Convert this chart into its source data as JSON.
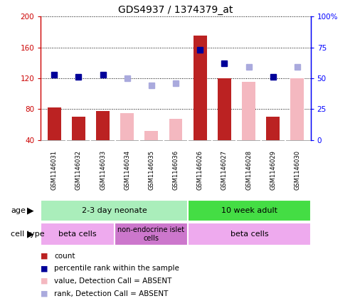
{
  "title": "GDS4937 / 1374379_at",
  "samples": [
    "GSM1146031",
    "GSM1146032",
    "GSM1146033",
    "GSM1146034",
    "GSM1146035",
    "GSM1146036",
    "GSM1146026",
    "GSM1146027",
    "GSM1146028",
    "GSM1146029",
    "GSM1146030"
  ],
  "bar_values": [
    82,
    70,
    78,
    75,
    52,
    67,
    175,
    120,
    115,
    70,
    120
  ],
  "bar_absent": [
    false,
    false,
    false,
    true,
    true,
    true,
    false,
    false,
    true,
    false,
    true
  ],
  "rank_values": [
    53,
    51,
    53,
    50,
    44,
    46,
    73,
    62,
    59,
    51,
    59
  ],
  "rank_absent": [
    false,
    false,
    false,
    true,
    true,
    true,
    false,
    false,
    true,
    false,
    true
  ],
  "ylim_left": [
    40,
    200
  ],
  "ylim_right": [
    0,
    100
  ],
  "yticks_left": [
    40,
    80,
    120,
    160,
    200
  ],
  "yticks_right": [
    0,
    25,
    50,
    75,
    100
  ],
  "ytick_labels_left": [
    "40",
    "80",
    "120",
    "160",
    "200"
  ],
  "ytick_labels_right": [
    "0",
    "25",
    "50",
    "75",
    "100%"
  ],
  "color_bar_present": "#bb2222",
  "color_bar_absent": "#f4b8c0",
  "color_rank_present": "#000099",
  "color_rank_absent": "#aaaadd",
  "age_groups": [
    {
      "label": "2-3 day neonate",
      "count": 6,
      "color": "#aaeebb"
    },
    {
      "label": "10 week adult",
      "count": 5,
      "color": "#44dd44"
    }
  ],
  "cell_type_groups": [
    {
      "label": "beta cells",
      "count": 3,
      "color": "#eeaaee"
    },
    {
      "label": "non-endocrine islet\ncells",
      "count": 3,
      "color": "#cc77cc"
    },
    {
      "label": "beta cells",
      "count": 5,
      "color": "#eeaaee"
    }
  ],
  "legend_items": [
    {
      "label": "count",
      "color": "#bb2222"
    },
    {
      "label": "percentile rank within the sample",
      "color": "#000099"
    },
    {
      "label": "value, Detection Call = ABSENT",
      "color": "#f4b8c0"
    },
    {
      "label": "rank, Detection Call = ABSENT",
      "color": "#aaaadd"
    }
  ]
}
